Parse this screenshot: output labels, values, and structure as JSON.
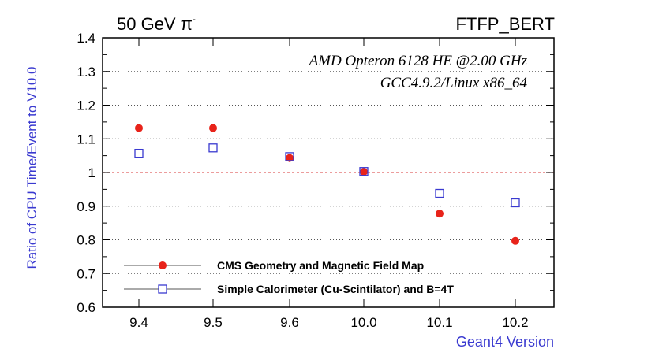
{
  "chart_data": {
    "type": "scatter",
    "top_left_label": "50 GeV π",
    "top_left_superscript": "-",
    "top_right_label": "FTFP_BERT",
    "annotations": [
      "AMD Opteron 6128 HE @2.00 GHz",
      "GCC4.9.2/Linux x86_64"
    ],
    "xlabel": "Geant4 Version",
    "ylabel": "Ratio of CPU Time/Event to V10.0",
    "categories": [
      "9.4",
      "9.5",
      "9.6",
      "10.0",
      "10.1",
      "10.2"
    ],
    "ylim": [
      0.6,
      1.4
    ],
    "yticks": [
      "0.6",
      "0.7",
      "0.8",
      "0.9",
      "1",
      "1.1",
      "1.2",
      "1.3",
      "1.4"
    ],
    "reference_line": 1.0,
    "grid": "horizontal dotted",
    "legend_position": "bottom-left",
    "series": [
      {
        "name": "CMS Geometry and Magnetic Field Map",
        "marker": "filled-circle",
        "color": "#e8231a",
        "values": [
          1.132,
          1.132,
          1.043,
          1.002,
          0.878,
          0.797
        ],
        "errors": [
          0.012,
          0.012,
          0.012,
          0.012,
          0.008,
          0.008
        ]
      },
      {
        "name": "Simple Calorimeter (Cu-Scintilator) and B=4T",
        "marker": "open-square",
        "color": "#3a3ad0",
        "values": [
          1.057,
          1.073,
          1.047,
          1.003,
          0.938,
          0.91
        ],
        "errors": [
          0.0,
          0.0,
          0.0,
          0.0,
          0.0,
          0.0
        ]
      }
    ]
  },
  "colors": {
    "axis_label": "#3a3ad0",
    "reference_line": "#e06060",
    "grid": "#555555",
    "legend_line": "#aaaaaa"
  }
}
